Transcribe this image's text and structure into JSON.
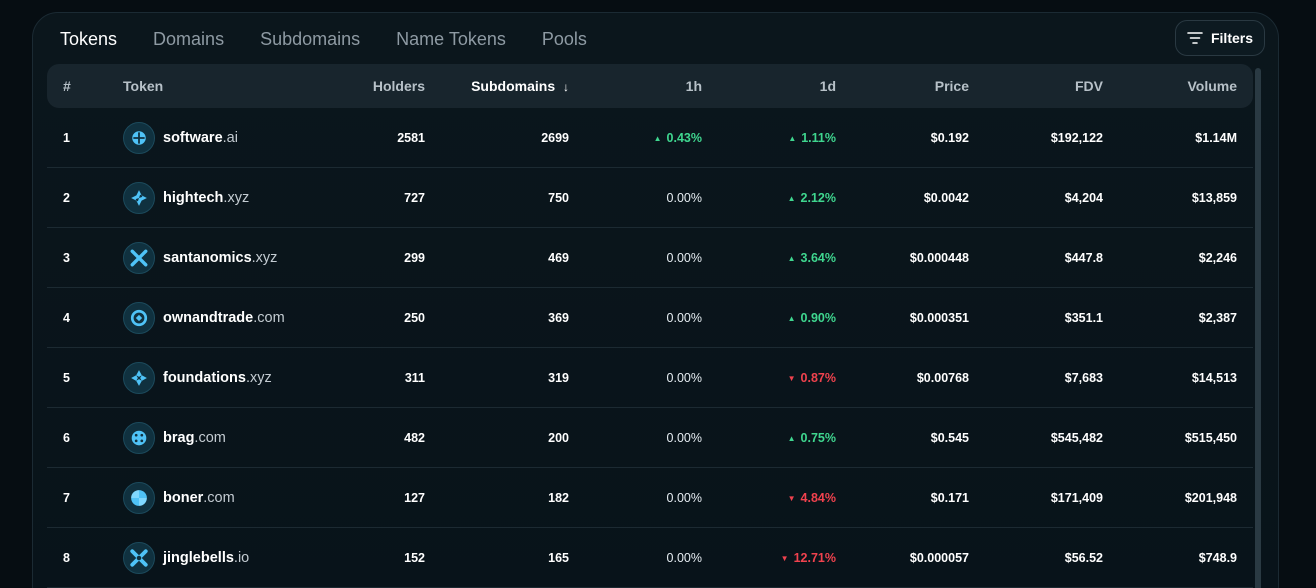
{
  "tabs": [
    {
      "label": "Tokens",
      "active": true
    },
    {
      "label": "Domains",
      "active": false
    },
    {
      "label": "Subdomains",
      "active": false
    },
    {
      "label": "Name Tokens",
      "active": false
    },
    {
      "label": "Pools",
      "active": false
    }
  ],
  "filters": {
    "label": "Filters",
    "icon": "filter-lines-icon"
  },
  "table": {
    "headers": {
      "num": "#",
      "token": "Token",
      "holders": "Holders",
      "subdomains": "Subdomains",
      "sort_arrow": "↓",
      "h1": "1h",
      "d1": "1d",
      "price": "Price",
      "fdv": "FDV",
      "volume": "Volume"
    },
    "rows": [
      {
        "num": "1",
        "name": "software",
        "tld": ".ai",
        "holders": "2581",
        "subdomains": "2699",
        "h1": "0.43%",
        "h1_dir": "up",
        "d1": "1.11%",
        "d1_dir": "up",
        "price": "$0.192",
        "fdv": "$192,122",
        "volume": "$1.14M"
      },
      {
        "num": "2",
        "name": "hightech",
        "tld": ".xyz",
        "holders": "727",
        "subdomains": "750",
        "h1": "0.00%",
        "h1_dir": "none",
        "d1": "2.12%",
        "d1_dir": "up",
        "price": "$0.0042",
        "fdv": "$4,204",
        "volume": "$13,859"
      },
      {
        "num": "3",
        "name": "santanomics",
        "tld": ".xyz",
        "holders": "299",
        "subdomains": "469",
        "h1": "0.00%",
        "h1_dir": "none",
        "d1": "3.64%",
        "d1_dir": "up",
        "price": "$0.000448",
        "fdv": "$447.8",
        "volume": "$2,246"
      },
      {
        "num": "4",
        "name": "ownandtrade",
        "tld": ".com",
        "holders": "250",
        "subdomains": "369",
        "h1": "0.00%",
        "h1_dir": "none",
        "d1": "0.90%",
        "d1_dir": "up",
        "price": "$0.000351",
        "fdv": "$351.1",
        "volume": "$2,387"
      },
      {
        "num": "5",
        "name": "foundations",
        "tld": ".xyz",
        "holders": "311",
        "subdomains": "319",
        "h1": "0.00%",
        "h1_dir": "none",
        "d1": "0.87%",
        "d1_dir": "down",
        "price": "$0.00768",
        "fdv": "$7,683",
        "volume": "$14,513"
      },
      {
        "num": "6",
        "name": "brag",
        "tld": ".com",
        "holders": "482",
        "subdomains": "200",
        "h1": "0.00%",
        "h1_dir": "none",
        "d1": "0.75%",
        "d1_dir": "up",
        "price": "$0.545",
        "fdv": "$545,482",
        "volume": "$515,450"
      },
      {
        "num": "7",
        "name": "boner",
        "tld": ".com",
        "holders": "127",
        "subdomains": "182",
        "h1": "0.00%",
        "h1_dir": "none",
        "d1": "4.84%",
        "d1_dir": "down",
        "price": "$0.171",
        "fdv": "$171,409",
        "volume": "$201,948"
      },
      {
        "num": "8",
        "name": "jinglebells",
        "tld": ".io",
        "holders": "152",
        "subdomains": "165",
        "h1": "0.00%",
        "h1_dir": "none",
        "d1": "12.71%",
        "d1_dir": "down",
        "price": "$0.000057",
        "fdv": "$56.52",
        "volume": "$748.9"
      }
    ]
  },
  "colors": {
    "up": "#3fd68f",
    "down": "#f0424e",
    "accent": "#4fc3f7"
  }
}
